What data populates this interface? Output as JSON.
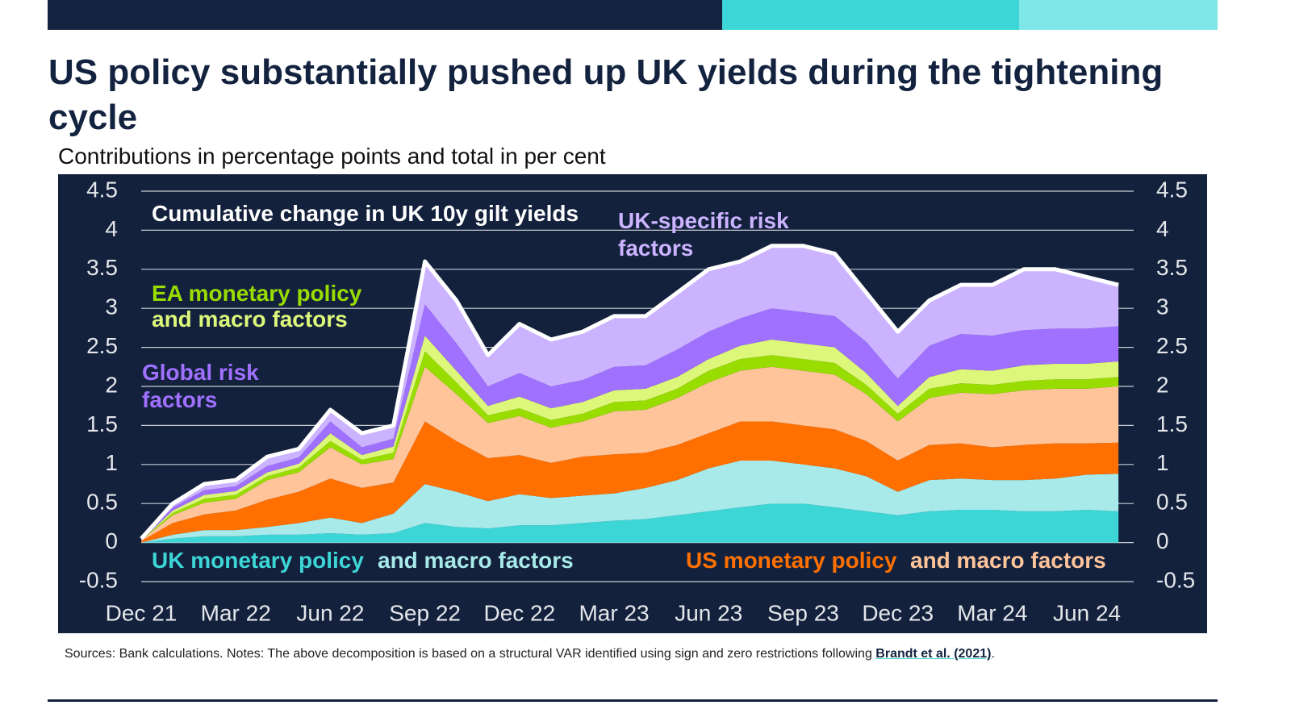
{
  "chart_data": {
    "type": "stacked-area",
    "title": "US policy substantially pushed up UK yields during the tightening cycle",
    "subtitle": "Contributions in percentage points and total in per cent",
    "categories": [
      "Dec 21",
      null,
      null,
      "Mar 22",
      null,
      null,
      "Jun 22",
      null,
      null,
      "Sep 22",
      null,
      null,
      "Dec 22",
      null,
      null,
      "Mar 23",
      null,
      null,
      "Jun 23",
      null,
      null,
      "Sep 23",
      null,
      null,
      "Dec 23",
      null,
      null,
      "Mar 24",
      null,
      null,
      "Jun 24",
      null
    ],
    "ylim": [
      -0.5,
      4.5
    ],
    "yticks": [
      -0.5,
      0,
      0.5,
      1,
      1.5,
      2,
      2.5,
      3,
      3.5,
      4,
      4.5
    ],
    "y2lim": [
      -0.5,
      4.5
    ],
    "y2ticks": [
      -0.5,
      0,
      0.5,
      1,
      1.5,
      2,
      2.5,
      3,
      3.5,
      4,
      4.5
    ],
    "grid": true,
    "series": [
      {
        "name": "UK monetary policy",
        "color": "#3dd6d6",
        "values": [
          0,
          0.05,
          0.08,
          0.08,
          0.1,
          0.1,
          0.12,
          0.1,
          0.12,
          0.25,
          0.2,
          0.18,
          0.22,
          0.22,
          0.25,
          0.28,
          0.3,
          0.35,
          0.4,
          0.45,
          0.5,
          0.5,
          0.45,
          0.4,
          0.35,
          0.4,
          0.42,
          0.42,
          0.4,
          0.4,
          0.42,
          0.4
        ]
      },
      {
        "name": "and macro factors",
        "color": "#a8eaea",
        "values": [
          0,
          0.05,
          0.08,
          0.08,
          0.1,
          0.15,
          0.2,
          0.15,
          0.25,
          0.5,
          0.45,
          0.35,
          0.4,
          0.35,
          0.35,
          0.35,
          0.4,
          0.45,
          0.55,
          0.6,
          0.55,
          0.5,
          0.5,
          0.45,
          0.3,
          0.4,
          0.4,
          0.38,
          0.4,
          0.42,
          0.45,
          0.48
        ]
      },
      {
        "name": "US monetary policy",
        "color": "#ff7000",
        "values": [
          0.02,
          0.15,
          0.2,
          0.25,
          0.35,
          0.4,
          0.5,
          0.45,
          0.4,
          0.8,
          0.65,
          0.55,
          0.5,
          0.45,
          0.5,
          0.5,
          0.45,
          0.45,
          0.45,
          0.5,
          0.5,
          0.5,
          0.5,
          0.45,
          0.4,
          0.45,
          0.45,
          0.42,
          0.45,
          0.45,
          0.4,
          0.4
        ]
      },
      {
        "name": "and macro factors",
        "color": "#ffc49a",
        "values": [
          0.01,
          0.1,
          0.15,
          0.15,
          0.25,
          0.25,
          0.4,
          0.3,
          0.3,
          0.7,
          0.6,
          0.45,
          0.5,
          0.45,
          0.45,
          0.55,
          0.55,
          0.6,
          0.65,
          0.65,
          0.7,
          0.7,
          0.7,
          0.6,
          0.5,
          0.6,
          0.65,
          0.68,
          0.7,
          0.7,
          0.7,
          0.72
        ]
      },
      {
        "name": "EA monetary policy",
        "color": "#99dd00",
        "values": [
          0,
          0.03,
          0.05,
          0.05,
          0.05,
          0.06,
          0.08,
          0.06,
          0.08,
          0.2,
          0.15,
          0.1,
          0.1,
          0.1,
          0.1,
          0.12,
          0.12,
          0.12,
          0.15,
          0.15,
          0.15,
          0.15,
          0.15,
          0.12,
          0.1,
          0.12,
          0.12,
          0.12,
          0.12,
          0.12,
          0.12,
          0.12
        ]
      },
      {
        "name": "and macro factors",
        "color": "#ddf77a",
        "values": [
          0,
          0.03,
          0.05,
          0.05,
          0.05,
          0.05,
          0.1,
          0.06,
          0.08,
          0.2,
          0.15,
          0.12,
          0.15,
          0.15,
          0.15,
          0.15,
          0.15,
          0.15,
          0.15,
          0.17,
          0.2,
          0.2,
          0.2,
          0.15,
          0.1,
          0.15,
          0.18,
          0.18,
          0.2,
          0.2,
          0.2,
          0.2
        ]
      },
      {
        "name": "Global risk factors",
        "color": "#a070ff",
        "values": [
          0.01,
          0.04,
          0.06,
          0.06,
          0.08,
          0.08,
          0.15,
          0.1,
          0.1,
          0.4,
          0.35,
          0.25,
          0.3,
          0.28,
          0.28,
          0.3,
          0.3,
          0.35,
          0.35,
          0.35,
          0.4,
          0.4,
          0.4,
          0.4,
          0.35,
          0.4,
          0.45,
          0.45,
          0.45,
          0.45,
          0.45,
          0.45
        ]
      },
      {
        "name": "UK-specific risk factors",
        "color": "#ccb3ff",
        "values": [
          0.01,
          0.05,
          0.08,
          0.08,
          0.12,
          0.11,
          0.15,
          0.18,
          0.17,
          0.55,
          0.55,
          0.4,
          0.63,
          0.6,
          0.62,
          0.65,
          0.63,
          0.73,
          0.8,
          0.73,
          0.8,
          0.85,
          0.8,
          0.63,
          0.6,
          0.58,
          0.63,
          0.65,
          0.78,
          0.76,
          0.66,
          0.53
        ]
      },
      {
        "name": "Cumulative change in UK 10y gilt yields",
        "color": "#ffffff",
        "type": "line",
        "values": [
          0.05,
          0.5,
          0.75,
          0.8,
          1.1,
          1.2,
          1.7,
          1.4,
          1.5,
          3.6,
          3.1,
          2.4,
          2.8,
          2.6,
          2.7,
          2.9,
          2.9,
          3.2,
          3.5,
          3.6,
          3.8,
          3.8,
          3.7,
          3.2,
          2.7,
          3.1,
          3.3,
          3.3,
          3.5,
          3.5,
          3.4,
          3.3
        ]
      }
    ]
  },
  "footnote": {
    "text": "Sources: Bank calculations. Notes: The above decomposition is based on a structural VAR identified using sign and zero restrictions following ",
    "link": "Brandt et al. (2021)",
    "end": "."
  }
}
